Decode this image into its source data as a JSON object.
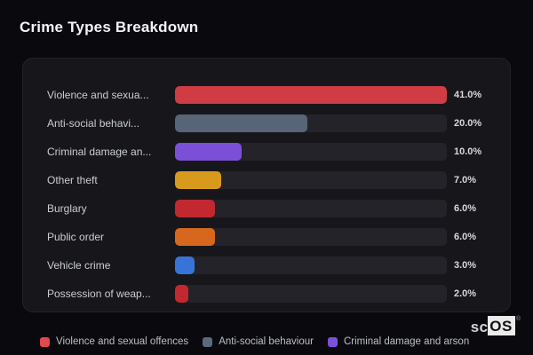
{
  "chart_data": {
    "type": "bar",
    "orientation": "horizontal",
    "title": "Crime Types Breakdown",
    "categories": [
      "Violence and sexua...",
      "Anti-social behavi...",
      "Criminal damage an...",
      "Other theft",
      "Burglary",
      "Public order",
      "Vehicle crime",
      "Possession of weap..."
    ],
    "values": [
      41.0,
      20.0,
      10.0,
      7.0,
      6.0,
      6.0,
      3.0,
      2.0
    ],
    "value_labels": [
      "41.0%",
      "20.0%",
      "10.0%",
      "7.0%",
      "6.0%",
      "6.0%",
      "3.0%",
      "2.0%"
    ],
    "bar_colors": [
      "#cf3c43",
      "#566577",
      "#7c4fd8",
      "#d89a1d",
      "#c2282f",
      "#d8671e",
      "#3874d8",
      "#c2282f"
    ],
    "xlim": [
      0,
      41
    ],
    "bars_scaled_to_max": true,
    "grid": false,
    "legend_position": "bottom",
    "legend": [
      {
        "label": "Violence and sexual offences",
        "color": "#e2484e"
      },
      {
        "label": "Anti-social behaviour",
        "color": "#5a6a7e"
      },
      {
        "label": "Criminal damage and arson",
        "color": "#7d50da"
      }
    ]
  },
  "colors": {
    "page_background": "#0a0a0e",
    "card_background": "#17171b",
    "track_background": "#232329",
    "title_text": "#f2f3f5",
    "category_text": "#c9cdd3",
    "value_text": "#d5d8dc",
    "legend_text": "#b9bec6"
  },
  "brand": {
    "prefix": "sc",
    "suffix": "OS",
    "registered_mark": "®"
  }
}
